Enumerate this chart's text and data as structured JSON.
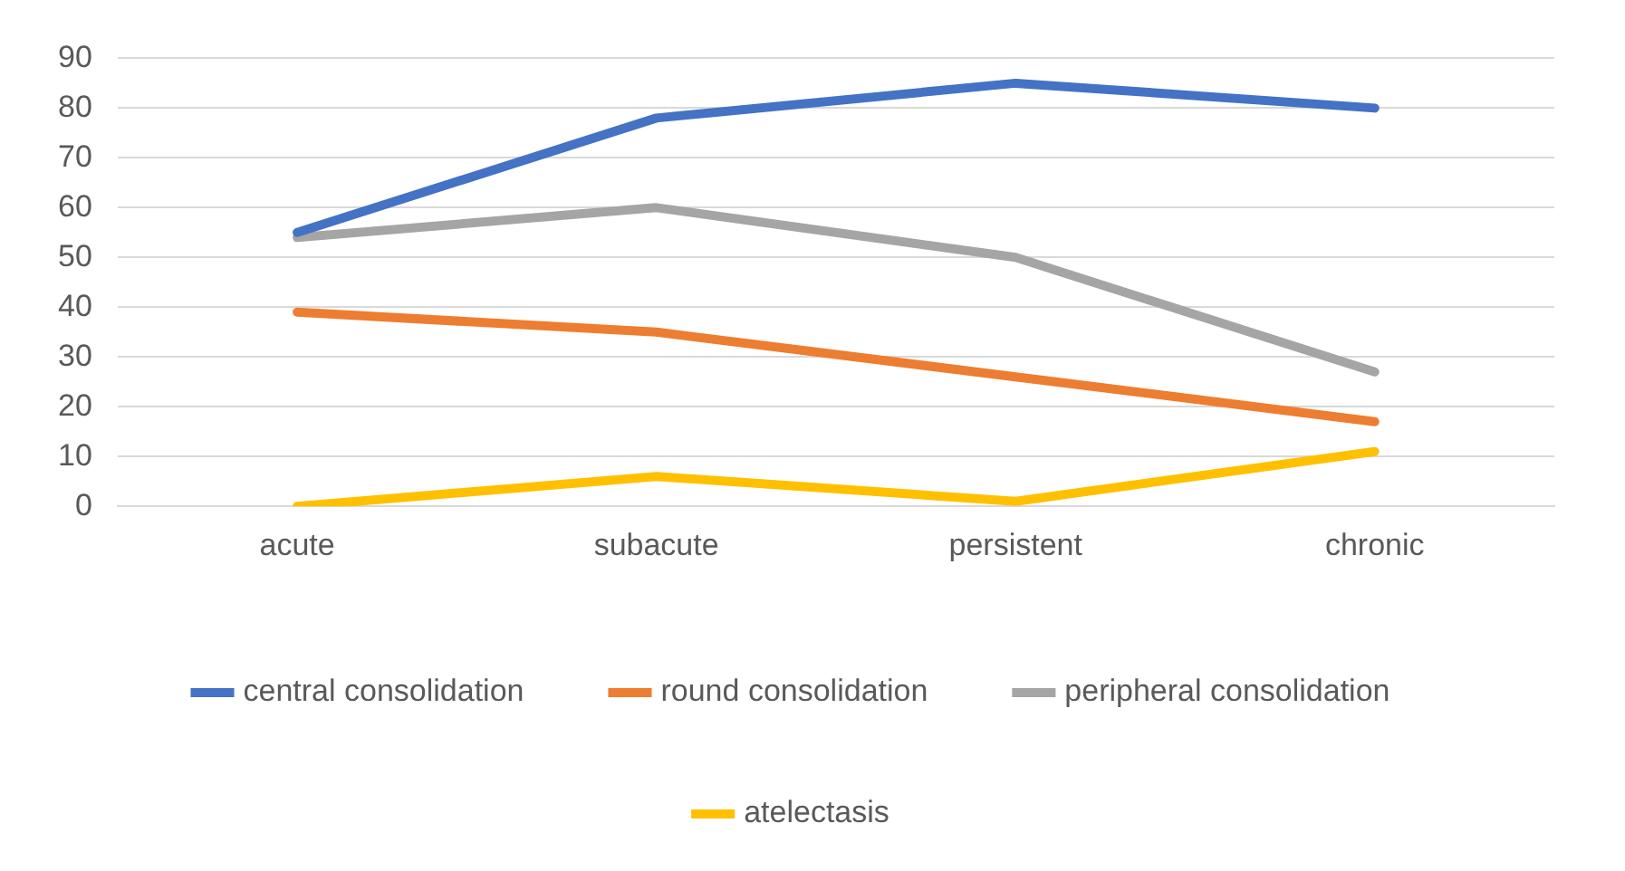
{
  "chart_data": {
    "type": "line",
    "categories": [
      "acute",
      "subacute",
      "persistent",
      "chronic"
    ],
    "series": [
      {
        "name": "central consolidation",
        "color": "#4472c4",
        "values": [
          55,
          78,
          85,
          80
        ]
      },
      {
        "name": "round consolidation",
        "color": "#ed7d31",
        "values": [
          39,
          35,
          26,
          17
        ]
      },
      {
        "name": "peripheral consolidation",
        "color": "#a5a5a5",
        "values": [
          54,
          60,
          50,
          27
        ]
      },
      {
        "name": "atelectasis",
        "color": "#ffc000",
        "values": [
          0,
          6,
          1,
          11
        ]
      }
    ],
    "ylim": [
      0,
      90
    ],
    "yticks": [
      0,
      10,
      20,
      30,
      40,
      50,
      60,
      70,
      80,
      90
    ],
    "grid": "y",
    "legend": "bottom",
    "marker": "none",
    "line_style": "solid"
  }
}
